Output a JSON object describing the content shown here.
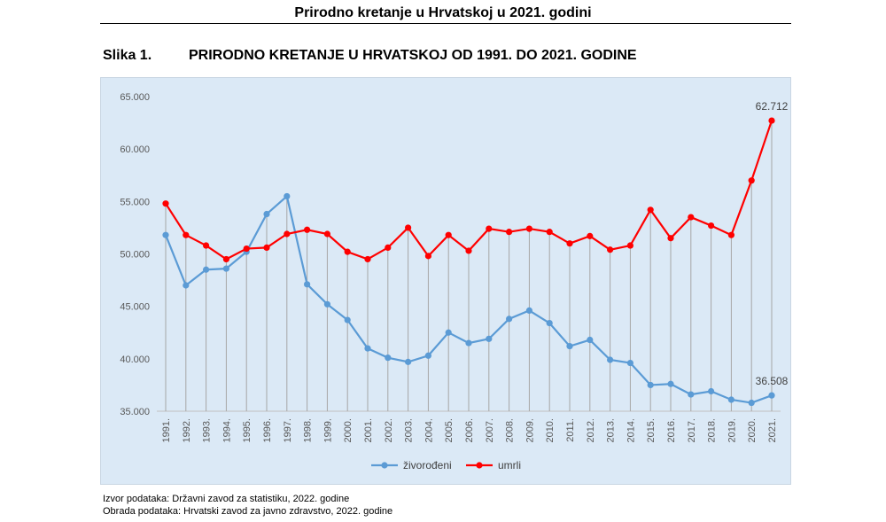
{
  "page": {
    "title": "Prirodno kretanje u Hrvatskoj u 2021. godini",
    "figure_label": "Slika 1.",
    "figure_title": "PRIRODNO KRETANJE U HRVATSKOJ OD 1991. DO 2021. GODINE",
    "source_line1": "Izvor podataka: Državni zavod za statistiku, 2022. godine",
    "source_line2": "Obrada podataka: Hrvatski zavod za javno zdravstvo, 2022. godine"
  },
  "colors": {
    "background": "#dbe9f6",
    "births": "#5b9bd5",
    "deaths": "#ff0000"
  },
  "chart_data": {
    "type": "line",
    "title": "",
    "xlabel": "",
    "ylabel": "",
    "x": [
      "1991.",
      "1992.",
      "1993.",
      "1994.",
      "1995.",
      "1996.",
      "1997.",
      "1998.",
      "1999.",
      "2000.",
      "2001.",
      "2002.",
      "2003.",
      "2004.",
      "2005.",
      "2006.",
      "2007.",
      "2008.",
      "2009.",
      "2010.",
      "2011.",
      "2012.",
      "2013.",
      "2014.",
      "2015.",
      "2016.",
      "2017.",
      "2018.",
      "2019.",
      "2020.",
      "2021."
    ],
    "ylim": [
      35000,
      65000
    ],
    "yticks": [
      35000,
      40000,
      45000,
      50000,
      55000,
      60000,
      65000
    ],
    "ytick_labels": [
      "35.000",
      "40.000",
      "45.000",
      "50.000",
      "55.000",
      "60.000",
      "65.000"
    ],
    "grid": "vertical drop lines",
    "legend": "bottom",
    "series": [
      {
        "name": "živorođeni",
        "color": "#5b9bd5",
        "values": [
          51800,
          47000,
          48500,
          48600,
          50200,
          53800,
          55500,
          47100,
          45200,
          43700,
          40990,
          40100,
          39700,
          40300,
          42500,
          41500,
          41900,
          43800,
          44600,
          43400,
          41200,
          41800,
          39900,
          39600,
          37500,
          37600,
          36600,
          36900,
          36100,
          35800,
          36508
        ]
      },
      {
        "name": "umrli",
        "color": "#ff0000",
        "values": [
          54800,
          51800,
          50800,
          49500,
          50500,
          50600,
          51900,
          52300,
          51900,
          50200,
          49500,
          50600,
          52500,
          49800,
          51800,
          50300,
          52400,
          52100,
          52400,
          52100,
          51000,
          51700,
          50400,
          50800,
          54200,
          51500,
          53500,
          52700,
          51800,
          57000,
          62712
        ]
      }
    ],
    "annotations": [
      {
        "series": "umrli",
        "x": "2021.",
        "label": "62.712"
      },
      {
        "series": "živorođeni",
        "x": "2021.",
        "label": "36.508"
      }
    ]
  }
}
